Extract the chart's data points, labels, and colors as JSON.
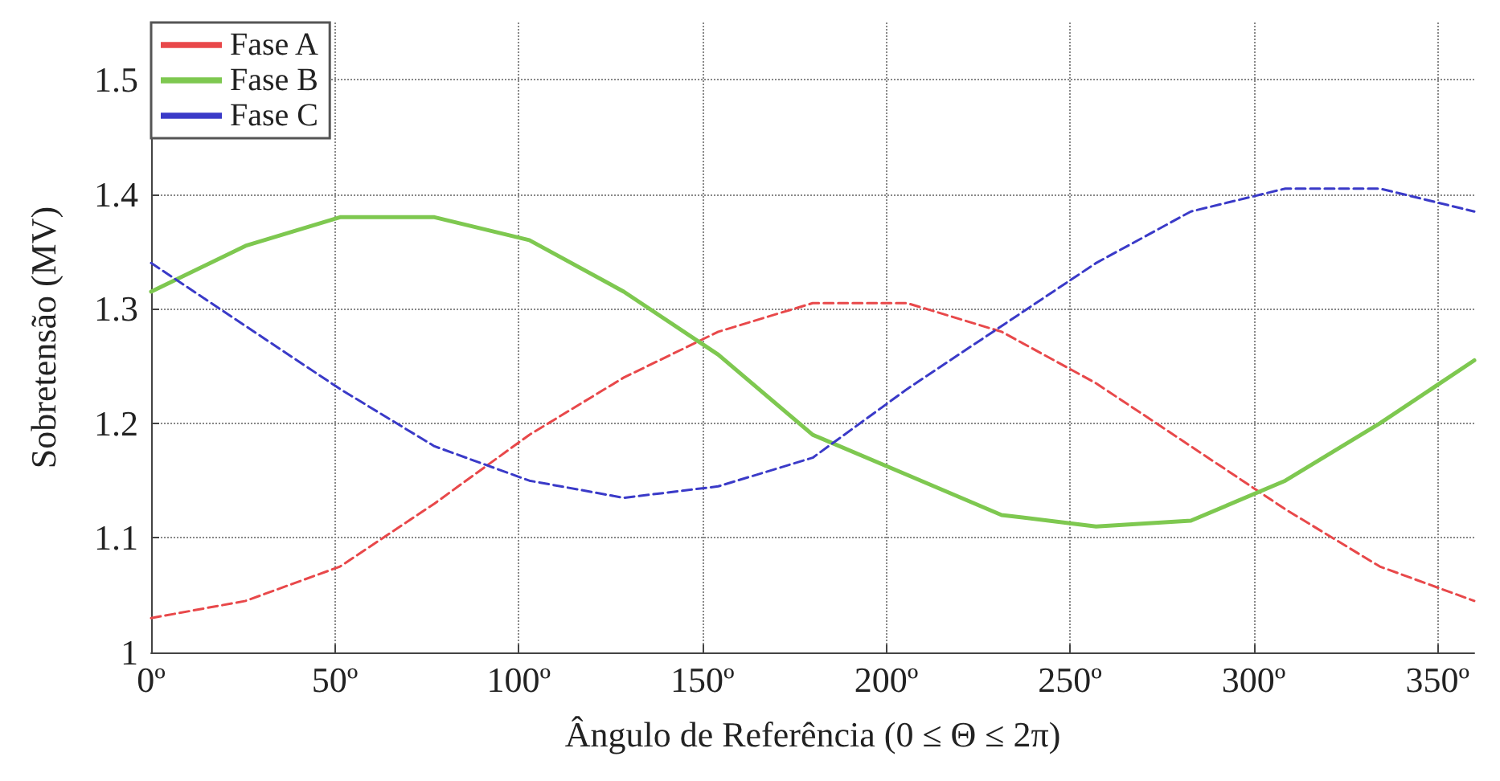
{
  "chart_data": {
    "type": "line",
    "xlabel": "Ângulo de Referência (0 ≤ Θ ≤ 2π)",
    "ylabel": "Sobretensão (MV)",
    "x": [
      0,
      25.7,
      51.4,
      77.1,
      102.9,
      128.6,
      154.3,
      180,
      205.7,
      231.4,
      257.1,
      282.9,
      308.6,
      334.3,
      360
    ],
    "series": [
      {
        "name": "Fase A",
        "color": "#e8484a",
        "line_style": "dashed",
        "values": [
          1.03,
          1.045,
          1.075,
          1.13,
          1.19,
          1.24,
          1.28,
          1.305,
          1.305,
          1.28,
          1.235,
          1.18,
          1.125,
          1.075,
          1.045
        ]
      },
      {
        "name": "Fase B",
        "color": "#7ec850",
        "line_style": "solid",
        "values": [
          1.315,
          1.355,
          1.38,
          1.38,
          1.36,
          1.315,
          1.26,
          1.19,
          1.155,
          1.12,
          1.11,
          1.115,
          1.15,
          1.2,
          1.255
        ]
      },
      {
        "name": "Fase C",
        "color": "#3a3ac8",
        "line_style": "dashed",
        "values": [
          1.34,
          1.285,
          1.23,
          1.18,
          1.15,
          1.135,
          1.145,
          1.17,
          1.23,
          1.285,
          1.34,
          1.385,
          1.405,
          1.405,
          1.385
        ]
      }
    ],
    "xlim": [
      0,
      360
    ],
    "xticks": [
      {
        "value": 0,
        "label": "0º"
      },
      {
        "value": 50,
        "label": "50º"
      },
      {
        "value": 100,
        "label": "100º"
      },
      {
        "value": 150,
        "label": "150º"
      },
      {
        "value": 200,
        "label": "200º"
      },
      {
        "value": 250,
        "label": "250º"
      },
      {
        "value": 300,
        "label": "300º"
      },
      {
        "value": 350,
        "label": "350º"
      }
    ],
    "ylim": [
      1,
      1.55
    ],
    "yticks": [
      1,
      1.1,
      1.2,
      1.3,
      1.4,
      1.5
    ],
    "grid": true,
    "legend": "top left",
    "marker": "none"
  }
}
